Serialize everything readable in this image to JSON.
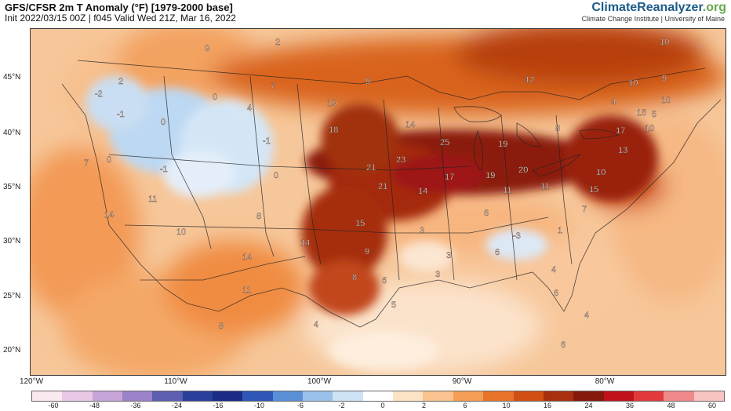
{
  "header": {
    "title": "GFS/CFSR 2m T Anomaly (°F) [1979-2000 base]",
    "subtitle": "Init 2022/03/15 00Z | f045 Valid Wed 21Z, Mar 16, 2022"
  },
  "brand": {
    "name": "ClimateReanalyzer",
    "tld": ".org",
    "affiliation": "Climate Change Institute | University of Maine"
  },
  "axes": {
    "lat_labels": [
      "45°N",
      "40°N",
      "35°N",
      "30°N",
      "25°N",
      "20°N"
    ],
    "lon_labels": [
      "120°W",
      "110°W",
      "100°W",
      "90°W",
      "80°W"
    ]
  },
  "colorbar": {
    "labels": [
      "-60",
      "-48",
      "-36",
      "-24",
      "-16",
      "-10",
      "-6",
      "-2",
      "0",
      "2",
      "6",
      "10",
      "16",
      "24",
      "36",
      "48",
      "60"
    ],
    "colors": [
      "#fbe9f0",
      "#e8c8e4",
      "#c6a4d8",
      "#9c82c8",
      "#5e5fb0",
      "#2a3f9a",
      "#1c2b86",
      "#2f57b8",
      "#5a8fd6",
      "#9ac1ea",
      "#cfe3f6",
      "#ffffff",
      "#fde3c6",
      "#f9c28e",
      "#f49d54",
      "#e8732a",
      "#d24f14",
      "#a8300e",
      "#851a0c",
      "#c1121c",
      "#e23a3a",
      "#f08a8a",
      "#f8c3c3"
    ]
  },
  "anomaly_labels": [
    "9",
    "2",
    "10",
    "2",
    "7",
    "9",
    "12",
    "10",
    "9",
    "-2",
    "0",
    "19",
    "4",
    "10",
    "-1",
    "0",
    "4",
    "14",
    "15",
    "5",
    "18",
    "-1",
    "8",
    "17",
    "10",
    "23",
    "25",
    "19",
    "13",
    "7",
    "-1",
    "21",
    "20",
    "0",
    "17",
    "19",
    "10",
    "0",
    "11",
    "21",
    "14",
    "11",
    "11",
    "15",
    "14",
    "8",
    "6",
    "7",
    "1",
    "14",
    "15",
    "3",
    "3",
    "10",
    "14",
    "-3",
    "9",
    "6",
    "3",
    "6",
    "4",
    "8",
    "5",
    "11",
    "6",
    "4",
    "4",
    "8",
    "6"
  ]
}
